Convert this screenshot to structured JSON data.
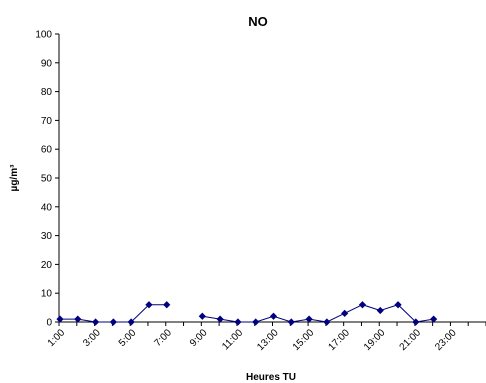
{
  "chart_data": {
    "type": "line",
    "title": "NO",
    "xlabel": "Heures TU",
    "ylabel": "µg/m³",
    "ylim": [
      0,
      100
    ],
    "yticks": [
      0,
      10,
      20,
      30,
      40,
      50,
      60,
      70,
      80,
      90,
      100
    ],
    "categories": [
      "1:00",
      "2:00",
      "3:00",
      "4:00",
      "5:00",
      "6:00",
      "7:00",
      "8:00",
      "9:00",
      "10:00",
      "11:00",
      "12:00",
      "13:00",
      "14:00",
      "15:00",
      "16:00",
      "17:00",
      "18:00",
      "19:00",
      "20:00",
      "21:00",
      "22:00",
      "23:00",
      "24:00"
    ],
    "x_tick_labels": [
      "1:00",
      "3:00",
      "5:00",
      "7:00",
      "9:00",
      "11:00",
      "13:00",
      "15:00",
      "17:00",
      "19:00",
      "21:00",
      "23:00"
    ],
    "series": [
      {
        "values": [
          1,
          1,
          0,
          0,
          0,
          6,
          6,
          null,
          2,
          1,
          0,
          0,
          2,
          0,
          1,
          0,
          3,
          6,
          4,
          6,
          0,
          1,
          null,
          null
        ],
        "color": "#000080",
        "marker": "diamond"
      }
    ],
    "grid": false,
    "legend": "none"
  }
}
